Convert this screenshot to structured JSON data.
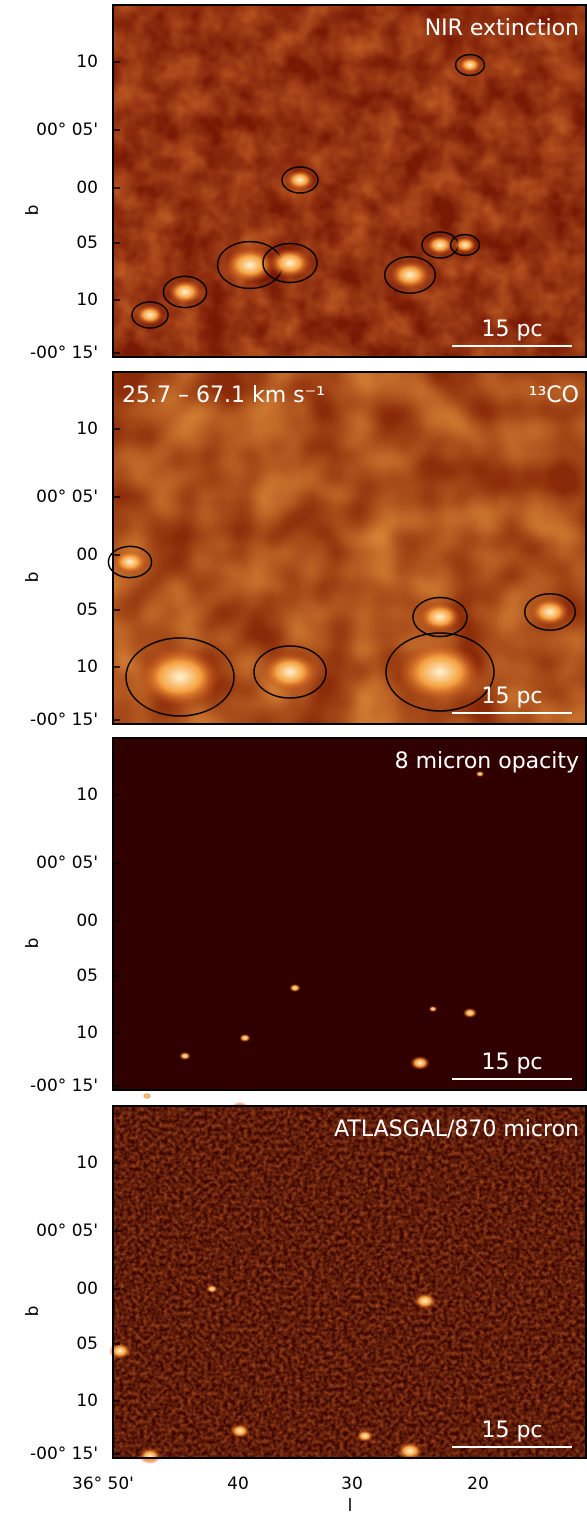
{
  "panels": [
    {
      "title": "NIR extinction",
      "scale_bar": "15 pc"
    },
    {
      "title": "25.7 – 67.1 km s⁻¹",
      "label": "¹³CO",
      "scale_bar": "15 pc"
    },
    {
      "title": "8 micron opacity",
      "scale_bar": "15 pc"
    },
    {
      "title": "ATLASGAL/870 micron",
      "scale_bar": "15 pc"
    }
  ],
  "y_axis": {
    "label": "b",
    "ticks": [
      "10",
      "00° 05'",
      "00",
      "05",
      "10",
      "-00° 15'"
    ]
  },
  "x_axis": {
    "label": "l",
    "ticks": [
      "36° 50'",
      "40",
      "30",
      "20"
    ]
  }
}
